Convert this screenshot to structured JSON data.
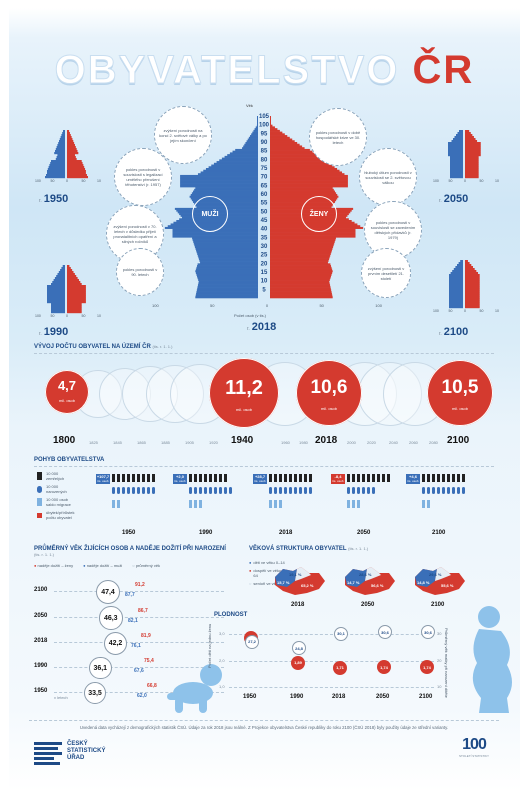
{
  "title": {
    "main": "OBYVATELSTVO",
    "accent": "ČR"
  },
  "pyramid": {
    "age_header": "Věk",
    "ages": [
      "105",
      "100",
      "95",
      "90",
      "85",
      "80",
      "75",
      "70",
      "65",
      "60",
      "55",
      "50",
      "45",
      "40",
      "35",
      "30",
      "25",
      "20",
      "15",
      "10",
      "5"
    ],
    "men_label": "MUŽI",
    "women_label": "ŽENY",
    "axis_ticks": [
      "100",
      "50",
      "0",
      "50",
      "100"
    ],
    "axis_caption": "Počet osob (v tis.)",
    "main_year": "2018",
    "year_prefix": "r.",
    "notes_left": [
      "zvýšení porodnosti na konci 2. světové války a po jejím skončení",
      "pokles porodnosti v souvislosti s legalizací umělého přerušení těhotenství (r. 1957)",
      "zvýšení porodnosti v 70. letech v důsledku přijetí pronatalitních opatření a silných ročníků",
      "pokles porodnosti v 90. letech"
    ],
    "notes_right": [
      "pokles porodnosti v době hospodářské krize ve 30. letech",
      "hluboký útlum porodnosti v souvislosti se 2. světovou válkou",
      "pokles porodnosti v souvislosti se zavedením dětských přídavků (r. 1979)",
      "zvýšení porodnosti v prvním desetiletí 21. století"
    ],
    "small_years": [
      "1950",
      "2050",
      "1990",
      "2100"
    ],
    "small_axis": [
      "100",
      "50",
      "0",
      "50",
      "100"
    ]
  },
  "timeline": {
    "title": "VÝVOJ POČTU OBYVATEL NA ÚZEMÍ ČR",
    "unit": "(tis. r. 1. 1.)",
    "years_small": [
      "1825",
      "1845",
      "1865",
      "1885",
      "1905",
      "1920",
      "1960",
      "1980",
      "2000",
      "2020",
      "2040",
      "2060",
      "2080"
    ],
    "highlights": [
      {
        "value": "4,7",
        "unit": "mil. osob",
        "year": "1800"
      },
      {
        "value": "11,2",
        "unit": "mil. osob",
        "year": "1940"
      },
      {
        "value": "10,6",
        "unit": "mil. osob",
        "year": "2018"
      },
      {
        "value": "10,5",
        "unit": "mil. osob",
        "year": "2100"
      }
    ]
  },
  "movement": {
    "title": "POHYB OBYVATELSTVA",
    "legend": [
      "10 000 zemřelých",
      "10 000 narozených",
      "10 000 osob saldo migrace",
      "úbytek/přírůstek počtu obyvatel"
    ],
    "columns": [
      {
        "year": "1950",
        "tag": "+107,7",
        "tag_unit": "tis. osob",
        "color": "#3a6fb8"
      },
      {
        "year": "1990",
        "tag": "+2,0",
        "tag_unit": "tis. osob",
        "color": "#3a6fb8"
      },
      {
        "year": "2018",
        "tag": "+28,7",
        "tag_unit": "tis. osob",
        "color": "#3a6fb8"
      },
      {
        "year": "2050",
        "tag": "-8,4",
        "tag_unit": "tis. osob",
        "color": "#d43a2f"
      },
      {
        "year": "2100",
        "tag": "+4,6",
        "tag_unit": "tis. osob",
        "color": "#3a6fb8"
      }
    ]
  },
  "avg_age": {
    "title": "PRŮMĚRNÝ VĚK ŽIJÍCÍCH OSOB A NADĚJE DOŽITÍ PŘI NAROZENÍ",
    "unit": "(tis. r. 1. 1.)",
    "legend": [
      "naděje dožití – ženy",
      "naděje dožití – muži",
      "průměrný věk"
    ],
    "rows": [
      {
        "year": "2100",
        "avg": "47,4",
        "women": "91,2",
        "men": "87,7"
      },
      {
        "year": "2050",
        "avg": "46,3",
        "women": "86,7",
        "men": "82,1"
      },
      {
        "year": "2018",
        "avg": "42,2",
        "women": "81,9",
        "men": "76,1"
      },
      {
        "year": "1990",
        "avg": "36,1",
        "women": "75,4",
        "men": "67,6"
      },
      {
        "year": "1950",
        "avg": "33,5",
        "women": "66,8",
        "men": "62,0"
      }
    ],
    "axis_caption": "v letech"
  },
  "age_structure": {
    "title": "VĚKOVÁ STRUKTURA OBYVATEL",
    "unit": "(tis. r. 1. 1.)",
    "legend": [
      "děti ve věku 0–14",
      "dospělí ve věku 15–64",
      "senioři ve věku 65+"
    ],
    "maps": [
      {
        "year": "2018",
        "a": "19,1 %",
        "b": "15,7 %",
        "c": "65,2 %"
      },
      {
        "year": "2050",
        "a": "28,6 %",
        "b": "14,7 %",
        "c": "56,6 %"
      },
      {
        "year": "2100",
        "a": "29,6 %",
        "b": "14,8 %",
        "c": "55,6 %"
      }
    ]
  },
  "fertility": {
    "title": "PLODNOST",
    "y_left": "Počet dětí na jednu ženu",
    "y_right": "Průměrný věk matky při narození dítěte",
    "ticks_left": [
      "3,0",
      "2,0",
      "1,0"
    ],
    "ticks_right": [
      "30",
      "20",
      "10"
    ],
    "columns": [
      {
        "year": "1950",
        "tfr": "2,80",
        "age": "27,2"
      },
      {
        "year": "1990",
        "tfr": "1,89",
        "age": "24,8"
      },
      {
        "year": "2018",
        "tfr": "1,71",
        "age": "30,1"
      },
      {
        "year": "2050",
        "tfr": "1,74",
        "age": "30,6"
      },
      {
        "year": "2100",
        "tfr": "1,74",
        "age": "30,6"
      }
    ]
  },
  "footer": {
    "text": "Uvedená data vycházejí z demografických statistik ČSÚ. Údaje za rok 2018 jsou reálné. Z Projekce obyvatelstva České republiky do roku 2100 (ČSÚ 2018) byly použity údaje ze střední varianty.",
    "logo_lines": [
      "ČESKÝ",
      "STATISTICKÝ",
      "ÚŘAD"
    ],
    "anniversary": "100",
    "anniversary_sub": "STOLETÍ STATISTIKY"
  },
  "colors": {
    "men": "#3a6fb8",
    "women": "#d43a2f",
    "navy": "#1d4a86"
  }
}
